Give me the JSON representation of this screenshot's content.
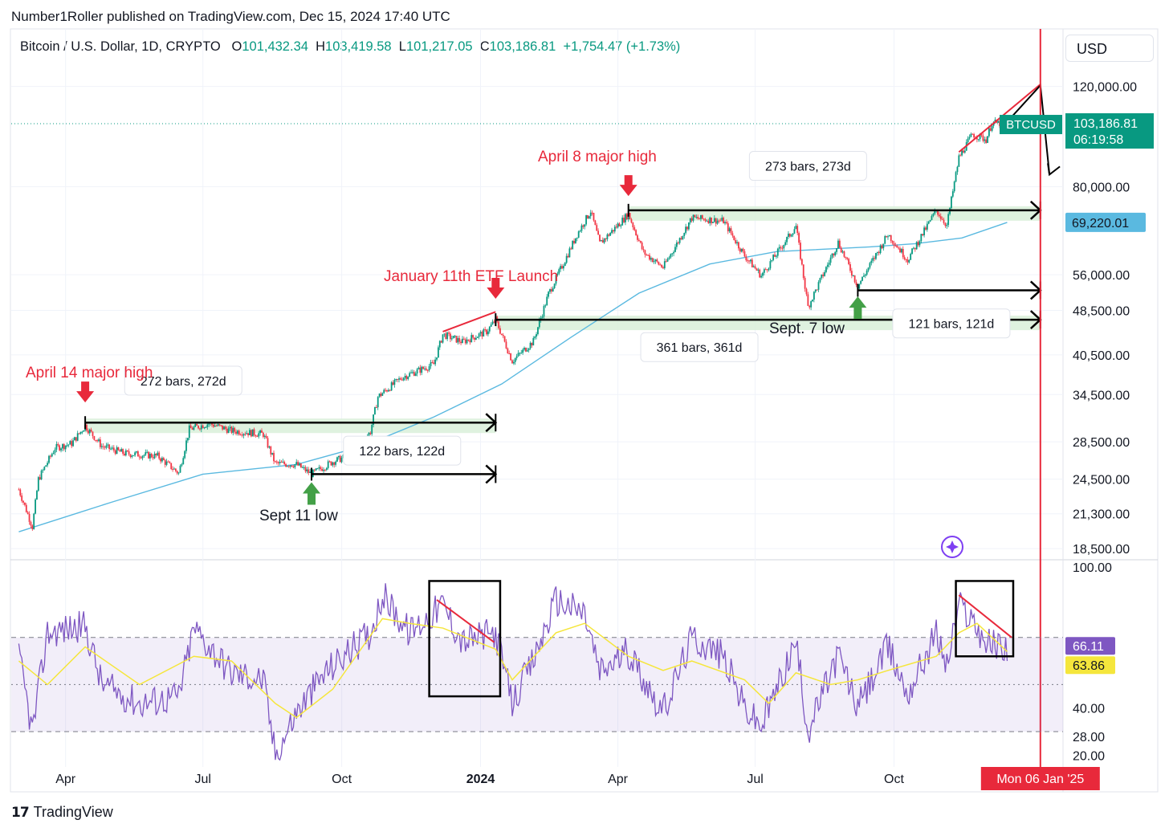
{
  "header": {
    "published": "Number1Roller published on TradingView.com, Dec 15, 2024 17:40 UTC"
  },
  "legend": {
    "symbol": "Bitcoin / U.S. Dollar, 1D, CRYPTO",
    "o_label": "O",
    "o_value": "101,432.34",
    "h_label": "H",
    "h_value": "103,419.58",
    "l_label": "L",
    "l_value": "101,217.05",
    "c_label": "C",
    "c_value": "103,186.81",
    "change": "+1,754.47 (+1.73%)"
  },
  "currency_button": "USD",
  "footer": {
    "logo_text": "TradingView"
  },
  "colors": {
    "up": "#089981",
    "down": "#f23645",
    "ma": "#5ab9e0",
    "rsi": "#7e57c2",
    "rsi_ma": "#f5e63c",
    "annotation_red": "#e8293b",
    "zone_green": "#d9f0d9"
  },
  "chart_data": [
    {
      "type": "candlestick",
      "symbol": "BTCUSD",
      "x_ticks": [
        "Apr",
        "Jul",
        "Oct",
        "2024",
        "Apr",
        "Jul",
        "Oct"
      ],
      "y_scale": "log",
      "y_ticks": [
        "120,000.00",
        "80,000.00",
        "56,000.00",
        "48,500.00",
        "40,500.00",
        "34,500.00",
        "28,500.00",
        "24,500.00",
        "21,300.00",
        "18,500.00"
      ],
      "x_range": [
        "2023-02-24",
        "2025-01-21"
      ],
      "y_range": [
        17800,
        125000
      ],
      "close_price": "103,186.81",
      "countdown": "06:19:58",
      "price_tag": "BTCUSD",
      "ma_price": "69,220.01",
      "ma_points": [
        [
          "2023-03-01",
          19800
        ],
        [
          "2023-05-01",
          22300
        ],
        [
          "2023-07-01",
          25000
        ],
        [
          "2023-09-01",
          26000
        ],
        [
          "2023-10-15",
          28000
        ],
        [
          "2023-12-01",
          31500
        ],
        [
          "2024-01-15",
          36000
        ],
        [
          "2024-03-01",
          43500
        ],
        [
          "2024-04-15",
          52000
        ],
        [
          "2024-06-01",
          58500
        ],
        [
          "2024-07-15",
          61500
        ],
        [
          "2024-09-15",
          62700
        ],
        [
          "2024-10-15",
          63500
        ],
        [
          "2024-11-15",
          65000
        ],
        [
          "2024-12-15",
          69220
        ]
      ],
      "price_path": [
        [
          "2023-03-01",
          23500
        ],
        [
          "2023-03-10",
          20200
        ],
        [
          "2023-03-14",
          24500
        ],
        [
          "2023-03-25",
          27800
        ],
        [
          "2023-04-05",
          28300
        ],
        [
          "2023-04-14",
          30400
        ],
        [
          "2023-04-25",
          28000
        ],
        [
          "2023-05-10",
          27200
        ],
        [
          "2023-06-01",
          26900
        ],
        [
          "2023-06-15",
          25100
        ],
        [
          "2023-06-22",
          30000
        ],
        [
          "2023-07-05",
          30700
        ],
        [
          "2023-07-20",
          29800
        ],
        [
          "2023-08-10",
          29400
        ],
        [
          "2023-08-18",
          26100
        ],
        [
          "2023-09-01",
          26000
        ],
        [
          "2023-09-11",
          25000
        ],
        [
          "2023-09-25",
          26300
        ],
        [
          "2023-10-10",
          27200
        ],
        [
          "2023-10-20",
          29700
        ],
        [
          "2023-10-25",
          34200
        ],
        [
          "2023-11-10",
          37000
        ],
        [
          "2023-12-01",
          39000
        ],
        [
          "2023-12-07",
          44000
        ],
        [
          "2023-12-20",
          42700
        ],
        [
          "2024-01-05",
          44500
        ],
        [
          "2024-01-11",
          46700
        ],
        [
          "2024-01-22",
          39500
        ],
        [
          "2024-02-05",
          42800
        ],
        [
          "2024-02-15",
          51800
        ],
        [
          "2024-02-28",
          61000
        ],
        [
          "2024-03-05",
          66000
        ],
        [
          "2024-03-14",
          72500
        ],
        [
          "2024-03-20",
          63500
        ],
        [
          "2024-04-08",
          71600
        ],
        [
          "2024-04-18",
          61300
        ],
        [
          "2024-05-01",
          57700
        ],
        [
          "2024-05-20",
          70500
        ],
        [
          "2024-06-10",
          69600
        ],
        [
          "2024-06-24",
          60500
        ],
        [
          "2024-07-05",
          55800
        ],
        [
          "2024-07-28",
          68200
        ],
        [
          "2024-08-05",
          49200
        ],
        [
          "2024-08-25",
          63900
        ],
        [
          "2024-09-07",
          53500
        ],
        [
          "2024-09-27",
          66000
        ],
        [
          "2024-10-10",
          59500
        ],
        [
          "2024-10-29",
          72700
        ],
        [
          "2024-11-05",
          68400
        ],
        [
          "2024-11-13",
          90000
        ],
        [
          "2024-11-22",
          98900
        ],
        [
          "2024-12-01",
          96800
        ],
        [
          "2024-12-05",
          103500
        ],
        [
          "2024-12-15",
          103186
        ]
      ],
      "annotations": [
        {
          "text": "April 14 major high",
          "marker": "down-arrow",
          "color": "red"
        },
        {
          "text": "January 11th ETF Launch",
          "marker": "down-arrow",
          "color": "red"
        },
        {
          "text": "April 8 major high",
          "marker": "down-arrow",
          "color": "red"
        },
        {
          "text": "Sept 11 low",
          "marker": "up-arrow",
          "color": "green"
        },
        {
          "text": "Sept. 7 low",
          "marker": "up-arrow",
          "color": "green"
        }
      ],
      "ranges": [
        {
          "label": "272 bars, 272d",
          "from": "2023-04-14",
          "to": "2024-01-11",
          "price": 30800
        },
        {
          "label": "122 bars, 122d",
          "from": "2023-09-11",
          "to": "2024-01-11",
          "price": 25000
        },
        {
          "label": "361 bars, 361d",
          "from": "2024-01-11",
          "to": "2025-01-06",
          "price": 46700
        },
        {
          "label": "273 bars, 273d",
          "from": "2024-04-08",
          "to": "2025-01-06",
          "price": 72700
        },
        {
          "label": "121 bars, 121d",
          "from": "2024-09-07",
          "to": "2025-01-06",
          "price": 52600
        }
      ],
      "date_marker": "Mon 06 Jan '25"
    },
    {
      "type": "line",
      "name": "RSI",
      "y_ticks": [
        "100.00",
        "40.00",
        "28.00",
        "20.00"
      ],
      "y_range": [
        15,
        102
      ],
      "bands": [
        30,
        50,
        70
      ],
      "rsi_value": "66.11",
      "rsi_ma_value": "63.86",
      "rsi_path": [
        [
          "2023-03-01",
          62
        ],
        [
          "2023-03-10",
          30
        ],
        [
          "2023-03-20",
          72
        ],
        [
          "2023-04-14",
          75
        ],
        [
          "2023-04-25",
          50
        ],
        [
          "2023-05-20",
          42
        ],
        [
          "2023-06-15",
          45
        ],
        [
          "2023-06-25",
          74
        ],
        [
          "2023-07-20",
          55
        ],
        [
          "2023-08-10",
          52
        ],
        [
          "2023-08-18",
          20
        ],
        [
          "2023-09-01",
          38
        ],
        [
          "2023-09-20",
          55
        ],
        [
          "2023-10-20",
          72
        ],
        [
          "2023-10-28",
          88
        ],
        [
          "2023-11-15",
          72
        ],
        [
          "2023-12-07",
          84
        ],
        [
          "2023-12-20",
          68
        ],
        [
          "2024-01-11",
          72
        ],
        [
          "2024-01-22",
          42
        ],
        [
          "2024-02-05",
          60
        ],
        [
          "2024-02-20",
          86
        ],
        [
          "2024-03-10",
          80
        ],
        [
          "2024-03-20",
          55
        ],
        [
          "2024-04-08",
          64
        ],
        [
          "2024-05-01",
          38
        ],
        [
          "2024-05-20",
          70
        ],
        [
          "2024-06-10",
          62
        ],
        [
          "2024-06-24",
          40
        ],
        [
          "2024-07-05",
          32
        ],
        [
          "2024-07-28",
          68
        ],
        [
          "2024-08-05",
          30
        ],
        [
          "2024-08-25",
          63
        ],
        [
          "2024-09-07",
          40
        ],
        [
          "2024-09-27",
          66
        ],
        [
          "2024-10-10",
          46
        ],
        [
          "2024-10-29",
          72
        ],
        [
          "2024-11-05",
          58
        ],
        [
          "2024-11-13",
          84
        ],
        [
          "2024-11-22",
          78
        ],
        [
          "2024-12-01",
          68
        ],
        [
          "2024-12-15",
          66
        ]
      ],
      "rsi_ma_path": [
        [
          "2023-03-01",
          60
        ],
        [
          "2023-03-20",
          50
        ],
        [
          "2023-04-14",
          66
        ],
        [
          "2023-05-20",
          50
        ],
        [
          "2023-06-25",
          62
        ],
        [
          "2023-07-20",
          60
        ],
        [
          "2023-08-18",
          42
        ],
        [
          "2023-09-01",
          36
        ],
        [
          "2023-09-25",
          48
        ],
        [
          "2023-10-28",
          78
        ],
        [
          "2023-11-15",
          76
        ],
        [
          "2023-12-07",
          74
        ],
        [
          "2024-01-11",
          65
        ],
        [
          "2024-01-22",
          52
        ],
        [
          "2024-02-20",
          72
        ],
        [
          "2024-03-10",
          76
        ],
        [
          "2024-04-08",
          62
        ],
        [
          "2024-05-01",
          56
        ],
        [
          "2024-05-20",
          60
        ],
        [
          "2024-06-24",
          52
        ],
        [
          "2024-07-10",
          42
        ],
        [
          "2024-07-28",
          55
        ],
        [
          "2024-08-20",
          50
        ],
        [
          "2024-09-07",
          52
        ],
        [
          "2024-09-27",
          56
        ],
        [
          "2024-10-29",
          62
        ],
        [
          "2024-11-13",
          72
        ],
        [
          "2024-11-25",
          76
        ],
        [
          "2024-12-15",
          64
        ]
      ]
    }
  ]
}
